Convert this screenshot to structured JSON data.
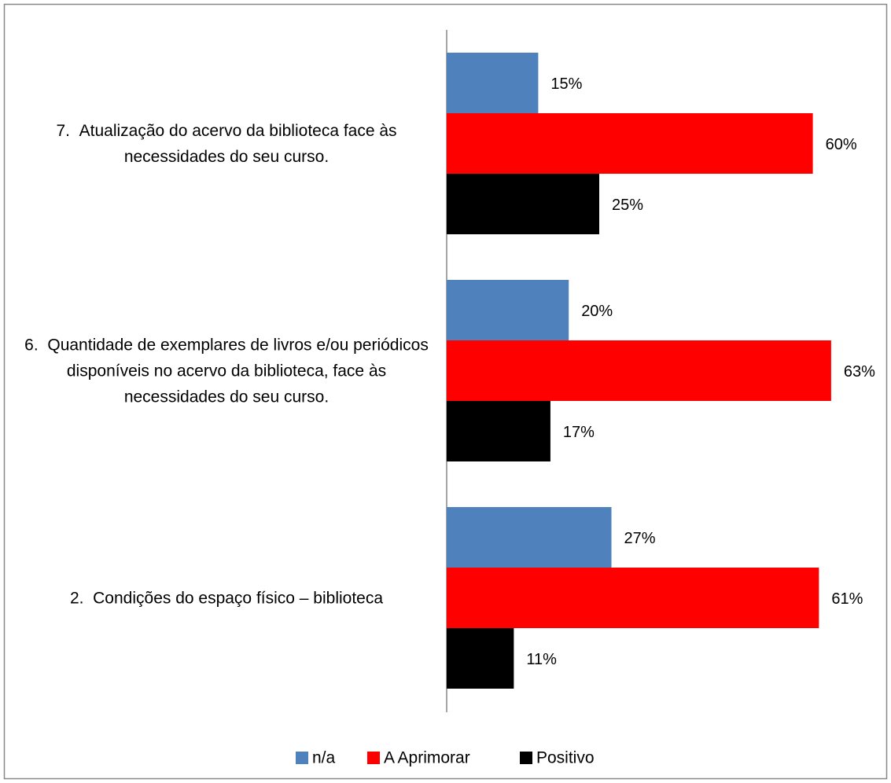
{
  "chart_data": {
    "type": "hbar",
    "categories": [
      "7.\tAtualização do acervo da biblioteca face às necessidades do seu curso.",
      "6.\tQuantidade de exemplares de livros e/ou periódicos disponíveis no acervo da biblioteca, face às necessidades do seu curso.",
      "2.\tCondições do espaço físico – biblioteca"
    ],
    "series": [
      {
        "name": "n/a",
        "color": "#4f81bd",
        "values": [
          15,
          20,
          27
        ],
        "value_labels": [
          "15%",
          "20%",
          "27%"
        ]
      },
      {
        "name": "A Aprimorar",
        "color": "#ff0000",
        "values": [
          60,
          63,
          61
        ],
        "value_labels": [
          "60%",
          "63%",
          "61%"
        ]
      },
      {
        "name": "Positivo",
        "color": "#000000",
        "values": [
          25,
          17,
          11
        ],
        "value_labels": [
          "25%",
          "17%",
          "11%"
        ]
      }
    ],
    "legend": "bottom"
  }
}
